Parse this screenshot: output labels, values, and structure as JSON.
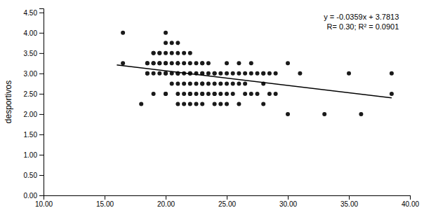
{
  "chart_data": {
    "type": "scatter",
    "ylabel": "desportivos",
    "annotations": [
      "y = -0.0359x + 3.7813",
      "R= 0.30; R² = 0.0901"
    ],
    "series": [
      {
        "type": "scatter",
        "color": "#1a1a1a",
        "x": [
          16.5,
          16.5,
          18.0,
          18.5,
          18.5,
          18.5,
          18.5,
          19.0,
          19.0,
          19.0,
          19.0,
          19.0,
          19.0,
          19.5,
          19.5,
          19.5,
          19.5,
          19.5,
          20.0,
          20.0,
          20.0,
          20.0,
          20.0,
          20.0,
          20.0,
          20.0,
          20.0,
          20.5,
          20.5,
          20.5,
          20.5,
          20.5,
          21.0,
          21.0,
          21.0,
          21.0,
          21.0,
          21.0,
          21.0,
          21.0,
          21.0,
          21.0,
          21.5,
          21.5,
          21.5,
          21.5,
          21.5,
          21.5,
          22.0,
          22.0,
          22.0,
          22.0,
          22.0,
          22.0,
          22.0,
          22.0,
          22.5,
          22.5,
          22.5,
          22.5,
          22.5,
          23.0,
          23.0,
          23.0,
          23.0,
          23.0,
          23.0,
          23.0,
          23.0,
          23.0,
          23.5,
          23.5,
          23.5,
          23.5,
          24.0,
          24.0,
          24.0,
          24.0,
          24.0,
          24.0,
          24.5,
          24.5,
          24.5,
          24.5,
          25.0,
          25.0,
          25.0,
          25.0,
          25.0,
          25.5,
          25.5,
          25.5,
          26.0,
          26.0,
          26.0,
          26.0,
          26.5,
          26.5,
          26.5,
          27.0,
          27.0,
          27.0,
          27.5,
          27.5,
          28.0,
          28.0,
          28.0,
          28.0,
          28.5,
          28.5,
          29.0,
          29.0,
          30.0,
          30.0,
          31.0,
          33.0,
          35.0,
          36.0,
          38.5,
          38.5
        ],
        "values": [
          4.0,
          3.25,
          2.25,
          3.25,
          3.25,
          3.0,
          3.0,
          3.5,
          3.5,
          3.25,
          3.25,
          3.0,
          2.5,
          3.5,
          3.5,
          3.25,
          3.25,
          3.0,
          4.0,
          3.75,
          3.5,
          3.25,
          3.25,
          3.0,
          3.0,
          2.5,
          2.5,
          3.75,
          3.5,
          3.25,
          3.0,
          2.75,
          3.75,
          3.5,
          3.25,
          3.25,
          3.0,
          3.0,
          3.0,
          2.75,
          2.5,
          2.25,
          3.5,
          3.25,
          3.0,
          2.75,
          2.5,
          2.25,
          3.5,
          3.25,
          3.0,
          3.0,
          2.75,
          2.5,
          2.5,
          2.25,
          3.25,
          3.0,
          2.75,
          2.5,
          2.25,
          3.25,
          3.25,
          3.0,
          3.0,
          2.75,
          2.75,
          2.5,
          2.5,
          2.25,
          3.25,
          3.0,
          2.75,
          2.5,
          3.0,
          3.0,
          2.75,
          2.5,
          2.5,
          2.25,
          3.0,
          2.75,
          2.5,
          2.25,
          3.25,
          3.0,
          2.75,
          2.5,
          2.25,
          3.0,
          2.75,
          2.5,
          3.25,
          3.0,
          2.75,
          2.25,
          3.0,
          2.75,
          2.5,
          3.25,
          3.0,
          2.5,
          3.0,
          2.5,
          3.0,
          3.0,
          2.75,
          2.25,
          3.0,
          2.5,
          3.0,
          2.5,
          3.25,
          2.0,
          3.0,
          2.0,
          3.0,
          2.0,
          3.0,
          2.5
        ]
      },
      {
        "type": "line",
        "color": "#000000",
        "x": [
          16.0,
          38.5
        ],
        "values": [
          3.2069,
          2.39915
        ]
      }
    ],
    "xlim": [
      10.0,
      40.0
    ],
    "ylim": [
      0.0,
      4.6
    ],
    "xticks": [
      {
        "value": 10.0,
        "label": "10.00"
      },
      {
        "value": 15.0,
        "label": "15.00"
      },
      {
        "value": 20.0,
        "label": "20.00"
      },
      {
        "value": 25.0,
        "label": "25.00"
      },
      {
        "value": 30.0,
        "label": "30.00"
      },
      {
        "value": 35.0,
        "label": "35.00"
      },
      {
        "value": 40.0,
        "label": "40.00"
      }
    ],
    "yticks": [
      {
        "value": 0.0,
        "label": "0.00"
      },
      {
        "value": 0.5,
        "label": "0.50"
      },
      {
        "value": 1.0,
        "label": "1.00"
      },
      {
        "value": 1.5,
        "label": "1.50"
      },
      {
        "value": 2.0,
        "label": "2.00"
      },
      {
        "value": 2.5,
        "label": "2.50"
      },
      {
        "value": 3.0,
        "label": "3.00"
      },
      {
        "value": 3.5,
        "label": "3.50"
      },
      {
        "value": 4.0,
        "label": "4.00"
      },
      {
        "value": 4.5,
        "label": "4.50"
      }
    ],
    "grid": false
  }
}
